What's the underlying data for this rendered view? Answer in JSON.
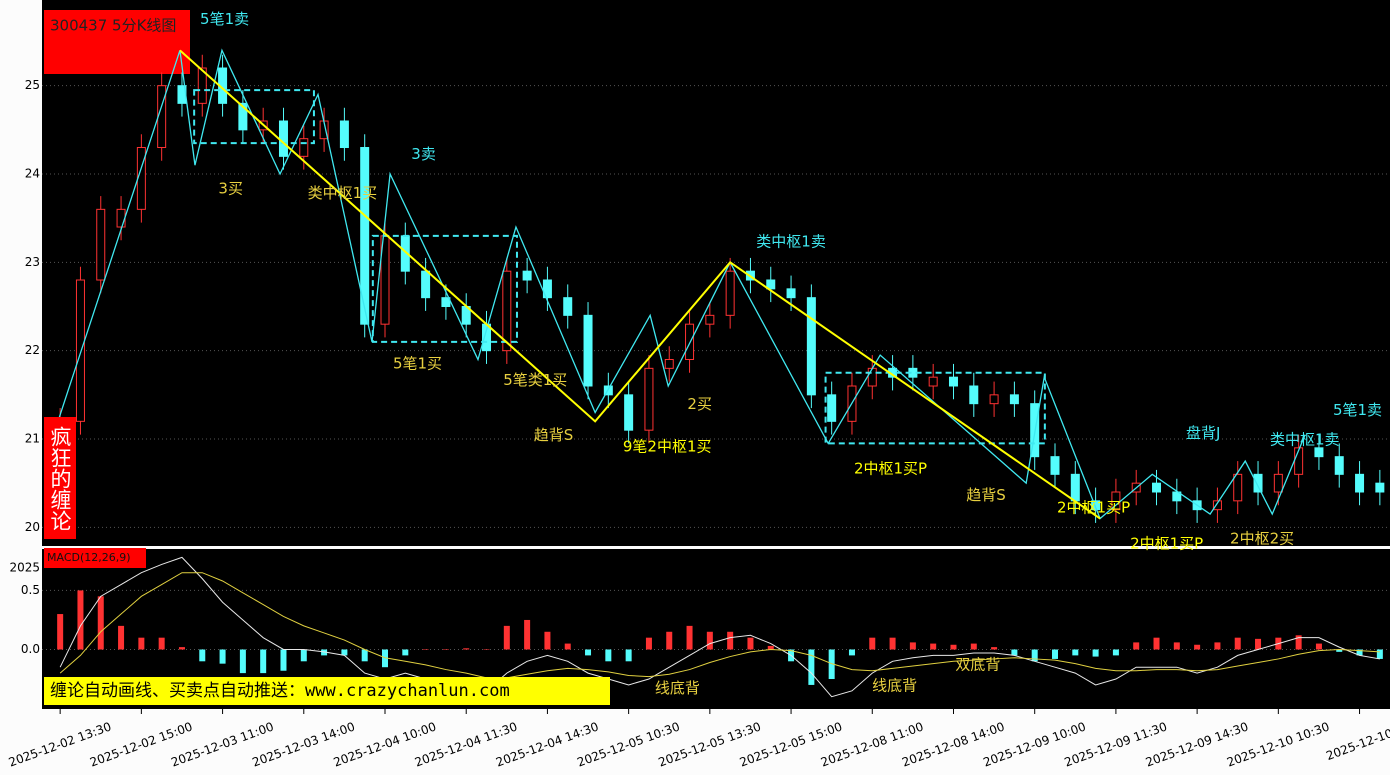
{
  "chart_data": [
    {
      "type": "candlestick",
      "title": "300437 5分K线图",
      "side_label": "疯狂的缠论",
      "watermark": "缠论自动画线、买卖点自动推送：www.crazychanlun.com",
      "categories": [
        "2025-12-02 13:30",
        null,
        null,
        null,
        "2025-12-02 15:00",
        null,
        null,
        null,
        "2025-12-03 11:00",
        null,
        null,
        null,
        "2025-12-03 14:00",
        null,
        null,
        null,
        "2025-12-04 10:00",
        null,
        null,
        null,
        "2025-12-04 11:30",
        null,
        null,
        null,
        "2025-12-04 14:30",
        null,
        null,
        null,
        "2025-12-05 10:30",
        null,
        null,
        null,
        "2025-12-05 13:30",
        null,
        null,
        null,
        "2025-12-05 15:00",
        null,
        null,
        null,
        "2025-12-08 11:00",
        null,
        null,
        null,
        "2025-12-08 14:00",
        null,
        null,
        null,
        "2025-12-09 10:00",
        null,
        null,
        null,
        "2025-12-09 11:30",
        null,
        null,
        null,
        "2025-12-09 14:30",
        null,
        null,
        null,
        "2025-12-10 10:30",
        null,
        null,
        null,
        "2025-12-10",
        null
      ],
      "open": [
        21.0,
        21.2,
        22.8,
        23.4,
        23.6,
        24.3,
        25.0,
        24.8,
        25.2,
        24.8,
        24.5,
        24.6,
        24.2,
        24.4,
        24.6,
        24.3,
        22.3,
        23.3,
        22.9,
        22.6,
        22.5,
        22.3,
        22.0,
        22.9,
        22.8,
        22.6,
        22.4,
        21.6,
        21.5,
        21.1,
        21.8,
        21.9,
        22.3,
        22.4,
        22.9,
        22.8,
        22.7,
        22.6,
        21.5,
        21.2,
        21.6,
        21.8,
        21.8,
        21.6,
        21.7,
        21.6,
        21.4,
        21.5,
        21.4,
        20.8,
        20.6,
        20.3,
        20.2,
        20.4,
        20.5,
        20.4,
        20.3,
        20.2,
        20.3,
        20.6,
        20.4,
        20.6,
        20.9,
        20.8,
        20.6,
        20.5
      ],
      "high": [
        21.35,
        22.95,
        23.75,
        23.75,
        24.45,
        25.15,
        25.15,
        25.35,
        25.35,
        24.95,
        24.75,
        24.75,
        24.55,
        24.75,
        24.75,
        24.45,
        23.45,
        23.45,
        23.05,
        22.75,
        22.65,
        22.45,
        23.05,
        23.05,
        22.95,
        22.75,
        22.55,
        21.75,
        21.65,
        21.95,
        22.05,
        22.45,
        22.55,
        23.05,
        23.05,
        22.95,
        22.85,
        22.75,
        21.65,
        21.75,
        21.95,
        21.95,
        21.95,
        21.85,
        21.85,
        21.75,
        21.65,
        21.65,
        21.55,
        20.95,
        20.75,
        20.45,
        20.55,
        20.65,
        20.65,
        20.55,
        20.45,
        20.45,
        20.75,
        20.75,
        20.75,
        21.05,
        21.05,
        20.95,
        20.75,
        20.65
      ],
      "low": [
        20.85,
        21.05,
        22.65,
        23.25,
        23.45,
        24.15,
        24.65,
        24.65,
        24.65,
        24.35,
        24.35,
        24.05,
        24.05,
        24.25,
        24.15,
        22.15,
        22.15,
        22.75,
        22.45,
        22.35,
        22.15,
        21.85,
        21.85,
        22.65,
        22.45,
        22.25,
        21.45,
        21.35,
        20.95,
        20.95,
        21.65,
        21.75,
        22.15,
        22.25,
        22.65,
        22.55,
        22.45,
        21.35,
        21.05,
        21.05,
        21.45,
        21.55,
        21.55,
        21.45,
        21.45,
        21.25,
        21.25,
        21.25,
        20.65,
        20.45,
        20.15,
        20.05,
        20.05,
        20.25,
        20.25,
        20.15,
        20.05,
        20.05,
        20.15,
        20.25,
        20.25,
        20.45,
        20.65,
        20.45,
        20.25,
        20.25
      ],
      "close": [
        21.2,
        22.8,
        23.6,
        23.6,
        24.3,
        25.0,
        24.8,
        25.2,
        24.8,
        24.5,
        24.6,
        24.2,
        24.4,
        24.6,
        24.3,
        22.3,
        23.3,
        22.9,
        22.6,
        22.5,
        22.3,
        22.0,
        22.9,
        22.8,
        22.6,
        22.4,
        21.6,
        21.5,
        21.1,
        21.8,
        21.9,
        22.3,
        22.4,
        22.9,
        22.8,
        22.7,
        22.6,
        21.5,
        21.2,
        21.6,
        21.8,
        21.7,
        21.7,
        21.7,
        21.6,
        21.4,
        21.5,
        21.4,
        20.8,
        20.6,
        20.3,
        20.2,
        20.4,
        20.5,
        20.4,
        20.3,
        20.2,
        20.3,
        20.6,
        20.4,
        20.6,
        20.9,
        20.8,
        20.6,
        20.4,
        20.4
      ],
      "up_color": "#ff3232",
      "down_color": "#54fcfc",
      "ylim": [
        19.8,
        25.97
      ],
      "yticks": [
        20,
        21,
        22,
        23,
        24,
        25
      ],
      "grid": true,
      "lines": [
        {
          "color": "#40e8f0",
          "x": [
            -0.25,
            5.9,
            6.64,
            7.97,
            10.83,
            12.7,
            15.36,
            16.25,
            20.58,
            22.45,
            26.35,
            29.06,
            29.95,
            33,
            37.83,
            40.39,
            47.58,
            48.47,
            51.22,
            53.79,
            56.64,
            58.37,
            59.7,
            61.32
          ],
          "values": [
            21.1,
            25.4,
            24.1,
            25.4,
            24.0,
            24.9,
            22.1,
            24.0,
            21.9,
            23.4,
            21.3,
            22.4,
            21.6,
            23.0,
            20.95,
            21.95,
            20.5,
            21.7,
            20.1,
            20.6,
            20.15,
            20.75,
            20.15,
            21.05
          ]
        },
        {
          "color": "#ffff00",
          "x": [
            5.9,
            26.35,
            33,
            51.22
          ],
          "values": [
            25.4,
            21.2,
            23.0,
            20.1
          ]
        }
      ],
      "boxes": [
        {
          "color": "#40e8f0",
          "x": [
            6.6,
            12.5
          ],
          "values": [
            24.35,
            24.95
          ]
        },
        {
          "color": "#40e8f0",
          "x": [
            15.4,
            22.5
          ],
          "values": [
            22.1,
            23.3
          ]
        },
        {
          "color": "#40e8f0",
          "x": [
            37.7,
            48.5
          ],
          "values": [
            20.95,
            21.75
          ]
        }
      ],
      "annotations": [
        {
          "text": "5笔1卖",
          "color": "#40e8f0",
          "x": 8.1,
          "y": 25.75
        },
        {
          "text": "3买",
          "color": "#e8d040",
          "x": 8.4,
          "y": 23.83
        },
        {
          "text": "类中枢1买",
          "color": "#e8d040",
          "x": 13.9,
          "y": 23.78
        },
        {
          "text": "3卖",
          "color": "#40e8f0",
          "x": 17.9,
          "y": 24.22
        },
        {
          "text": "5笔1买",
          "color": "#e8d040",
          "x": 17.6,
          "y": 21.85
        },
        {
          "text": "5笔类1买",
          "color": "#e8d040",
          "x": 23.4,
          "y": 21.66
        },
        {
          "text": "趋背S",
          "color": "#e8d040",
          "x": 24.3,
          "y": 21.04
        },
        {
          "text": "9笔2中枢1买",
          "color": "#ffff00",
          "x": 29.9,
          "y": 20.91
        },
        {
          "text": "2买",
          "color": "#e8d040",
          "x": 31.5,
          "y": 21.39
        },
        {
          "text": "类中枢1卖",
          "color": "#40e8f0",
          "x": 36.0,
          "y": 23.23
        },
        {
          "text": "2中枢1买P",
          "color": "#ffff00",
          "x": 40.9,
          "y": 20.66
        },
        {
          "text": "趋背S",
          "color": "#e8d040",
          "x": 45.6,
          "y": 20.36
        },
        {
          "text": "2中枢1买P",
          "color": "#ffff00",
          "x": 50.9,
          "y": 20.22
        },
        {
          "text": "2中枢1买P",
          "color": "#ffff00",
          "x": 54.5,
          "y": 19.81
        },
        {
          "text": "2中枢2买",
          "color": "#e8d040",
          "x": 59.2,
          "y": 19.87
        },
        {
          "text": "盘背J",
          "color": "#40e8f0",
          "x": 56.3,
          "y": 21.06
        },
        {
          "text": "类中枢1卖",
          "color": "#40e8f0",
          "x": 61.3,
          "y": 20.99
        },
        {
          "text": "5笔1卖",
          "color": "#40e8f0",
          "x": 63.9,
          "y": 21.32
        }
      ]
    },
    {
      "type": "macd",
      "title": "MACD(12,26,9)",
      "corner_label": "2025",
      "ylim": [
        -0.47,
        0.8
      ],
      "yticks": [
        {
          "value": 0,
          "label": "0.0"
        },
        {
          "value": 0.5,
          "label": "0.5"
        }
      ],
      "up_color": "#ff3232",
      "down_color": "#54fcfc",
      "values": [
        0.3,
        0.5,
        0.45,
        0.2,
        0.1,
        0.1,
        0.02,
        -0.1,
        -0.12,
        -0.2,
        -0.2,
        -0.18,
        -0.1,
        -0.05,
        -0.05,
        -0.1,
        -0.15,
        -0.05,
        0.0,
        0.0,
        0.01,
        0.0,
        0.2,
        0.25,
        0.15,
        0.05,
        -0.05,
        -0.1,
        -0.1,
        0.1,
        0.15,
        0.2,
        0.15,
        0.15,
        0.1,
        0.03,
        -0.1,
        -0.3,
        -0.25,
        -0.05,
        0.1,
        0.1,
        0.06,
        0.05,
        0.04,
        0.05,
        0.02,
        -0.05,
        -0.1,
        -0.08,
        -0.05,
        -0.06,
        -0.05,
        0.06,
        0.1,
        0.06,
        0.04,
        0.06,
        0.1,
        0.09,
        0.1,
        0.12,
        0.05,
        -0.02,
        -0.05,
        -0.08
      ],
      "lines": [
        {
          "color": "#e8e8e8",
          "values": [
            -0.15,
            0.2,
            0.45,
            0.55,
            0.65,
            0.72,
            0.78,
            0.6,
            0.4,
            0.25,
            0.1,
            0.0,
            0.0,
            -0.02,
            -0.05,
            -0.2,
            -0.25,
            -0.2,
            -0.25,
            -0.3,
            -0.32,
            -0.35,
            -0.2,
            -0.1,
            -0.05,
            -0.1,
            -0.2,
            -0.25,
            -0.3,
            -0.25,
            -0.15,
            -0.05,
            0.05,
            0.1,
            0.12,
            0.05,
            -0.05,
            -0.2,
            -0.4,
            -0.35,
            -0.2,
            -0.1,
            -0.07,
            -0.05,
            -0.05,
            -0.03,
            -0.03,
            -0.05,
            -0.1,
            -0.15,
            -0.2,
            -0.3,
            -0.25,
            -0.15,
            -0.15,
            -0.15,
            -0.2,
            -0.15,
            -0.05,
            0.0,
            0.05,
            0.1,
            0.1,
            0.02,
            -0.05,
            -0.08
          ]
        },
        {
          "color": "#e0d040",
          "values": [
            -0.2,
            -0.05,
            0.15,
            0.3,
            0.45,
            0.55,
            0.65,
            0.65,
            0.58,
            0.48,
            0.38,
            0.28,
            0.2,
            0.14,
            0.08,
            0.0,
            -0.07,
            -0.1,
            -0.13,
            -0.17,
            -0.2,
            -0.24,
            -0.24,
            -0.21,
            -0.18,
            -0.16,
            -0.17,
            -0.19,
            -0.22,
            -0.23,
            -0.21,
            -0.17,
            -0.11,
            -0.06,
            -0.02,
            0.0,
            -0.01,
            -0.05,
            -0.12,
            -0.17,
            -0.18,
            -0.16,
            -0.14,
            -0.12,
            -0.1,
            -0.09,
            -0.08,
            -0.07,
            -0.08,
            -0.09,
            -0.12,
            -0.16,
            -0.18,
            -0.18,
            -0.17,
            -0.17,
            -0.18,
            -0.17,
            -0.14,
            -0.11,
            -0.08,
            -0.04,
            -0.01,
            0.0,
            -0.01,
            -0.02
          ]
        }
      ],
      "annotations": [
        {
          "text": "线底背",
          "color": "#e8d040",
          "x": 30.4,
          "y": -0.33
        },
        {
          "text": "线底背",
          "color": "#e8d040",
          "x": 41.1,
          "y": -0.31
        },
        {
          "text": "双底背",
          "color": "#e8d040",
          "x": 45.2,
          "y": -0.13
        }
      ]
    }
  ]
}
